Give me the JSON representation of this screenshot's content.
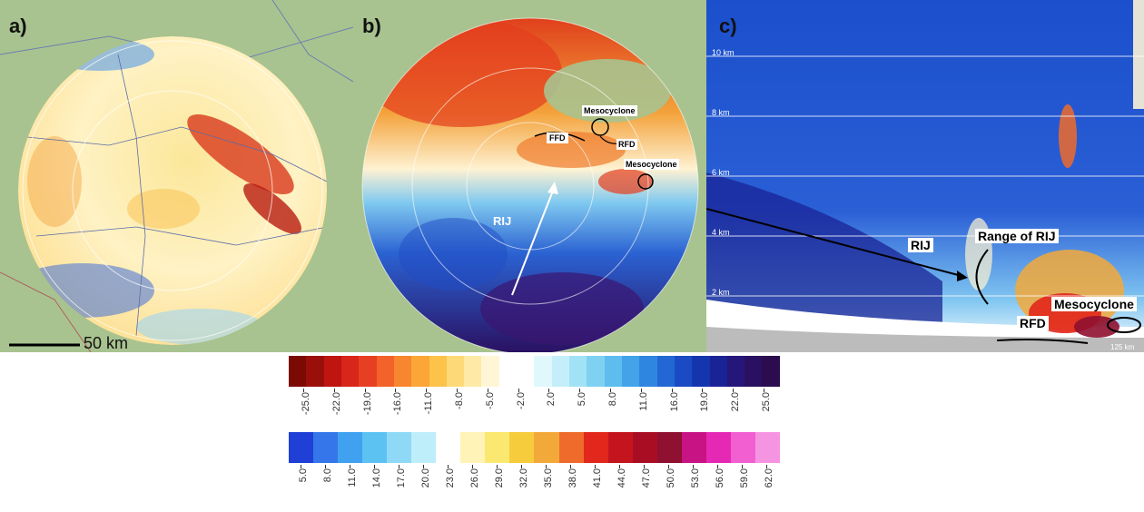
{
  "panels": {
    "a": {
      "label": "a)",
      "scale_label": "50 km"
    },
    "b": {
      "label": "b)",
      "annotations": {
        "ffd": "FFD",
        "rfd": "RFD",
        "mesocyclone_1": "Mesocyclone",
        "mesocyclone_2": "Mesocyclone",
        "rij": "RIJ"
      }
    },
    "c": {
      "label": "c)",
      "height_labels": [
        "10 km",
        "8 km",
        "6 km",
        "4 km",
        "2 km"
      ],
      "bottom_label": "125 km",
      "annotations": {
        "rij": "RIJ",
        "range_of_rij": "Range of RIJ",
        "mesocyclone": "Mesocyclone",
        "rfd": "RFD"
      }
    }
  },
  "colorbars": {
    "velocity": {
      "ticks": [
        "-25.0",
        "-22.0",
        "-19.0",
        "-16.0",
        "-11.0",
        "-8.0",
        "-5.0",
        "-2.0",
        "2.0",
        "5.0",
        "8.0",
        "11.0",
        "16.0",
        "19.0",
        "22.0",
        "25.0"
      ],
      "colors": [
        "#7b0a05",
        "#9b0f0b",
        "#be1510",
        "#d8261a",
        "#e73f22",
        "#f2622a",
        "#f7862f",
        "#fba636",
        "#fdc24a",
        "#fed978",
        "#feeaa6",
        "#fff6d6",
        "#ffffff",
        "#ffffff",
        "#e0f8fc",
        "#c4effa",
        "#a2e2f6",
        "#7fd1f2",
        "#5ebcee",
        "#43a3e9",
        "#2f86e0",
        "#2267d3",
        "#1a4bc4",
        "#1535af",
        "#1a2395",
        "#241779",
        "#2a1060",
        "#2b0c4e"
      ]
    },
    "reflectivity": {
      "ticks": [
        "5.0",
        "8.0",
        "11.0",
        "14.0",
        "17.0",
        "20.0",
        "23.0",
        "26.0",
        "29.0",
        "32.0",
        "35.0",
        "38.0",
        "41.0",
        "44.0",
        "47.0",
        "50.0",
        "53.0",
        "56.0",
        "59.0",
        "62.0"
      ],
      "colors": [
        "#1f3fd6",
        "#3577ea",
        "#3fa1ef",
        "#5cc2f2",
        "#8fd9f6",
        "#bfeefb",
        "#ffffff",
        "#fff3b8",
        "#fbe870",
        "#f6cc3d",
        "#f3a93a",
        "#ee6b2c",
        "#e2271d",
        "#c4141d",
        "#a90d24",
        "#8f1030",
        "#c81384",
        "#e529b4",
        "#f15fd0",
        "#f595e2"
      ]
    }
  }
}
